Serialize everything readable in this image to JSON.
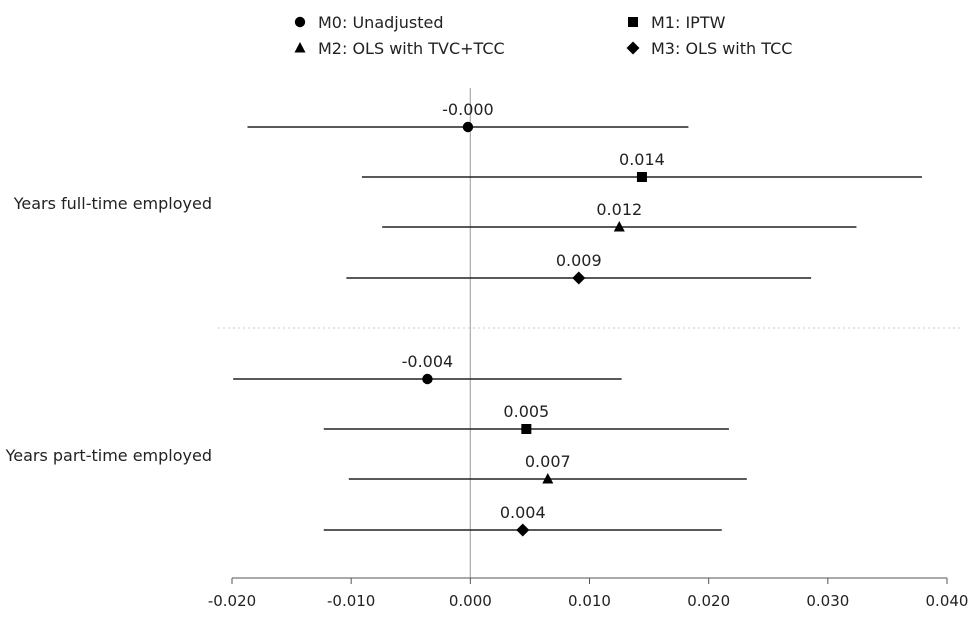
{
  "chart_data": {
    "type": "forest",
    "xlim": [
      -0.02,
      0.04
    ],
    "xticks": [
      -0.02,
      -0.01,
      0.0,
      0.01,
      0.02,
      0.03,
      0.04
    ],
    "xtick_labels": [
      "-0.020",
      "-0.010",
      "0.000",
      "0.010",
      "0.020",
      "0.030",
      "0.040"
    ],
    "reference_line": 0.0,
    "legend_position": "top",
    "series": [
      {
        "name": "M0: Unadjusted",
        "marker": "circle"
      },
      {
        "name": "M1: IPTW",
        "marker": "square"
      },
      {
        "name": "M2: OLS with TVC+TCC",
        "marker": "triangle"
      },
      {
        "name": "M3: OLS with TCC",
        "marker": "diamond"
      }
    ],
    "groups": [
      {
        "label": "Years full-time employed",
        "estimates": [
          {
            "model": "M0: Unadjusted",
            "value": -0.0002,
            "label": "-0.000",
            "ci": [
              -0.0187,
              0.0183
            ]
          },
          {
            "model": "M1: IPTW",
            "value": 0.0144,
            "label": "0.014",
            "ci": [
              -0.0091,
              0.0379
            ]
          },
          {
            "model": "M2: OLS with TVC+TCC",
            "value": 0.0125,
            "label": "0.012",
            "ci": [
              -0.0074,
              0.0324
            ]
          },
          {
            "model": "M3: OLS with TCC",
            "value": 0.0091,
            "label": "0.009",
            "ci": [
              -0.0104,
              0.0286
            ]
          }
        ]
      },
      {
        "label": "Years part-time employed",
        "estimates": [
          {
            "model": "M0: Unadjusted",
            "value": -0.0036,
            "label": "-0.004",
            "ci": [
              -0.0199,
              0.0127
            ]
          },
          {
            "model": "M1: IPTW",
            "value": 0.0047,
            "label": "0.005",
            "ci": [
              -0.0123,
              0.0217
            ]
          },
          {
            "model": "M2: OLS with TVC+TCC",
            "value": 0.0065,
            "label": "0.007",
            "ci": [
              -0.0102,
              0.0232
            ]
          },
          {
            "model": "M3: OLS with TCC",
            "value": 0.0044,
            "label": "0.004",
            "ci": [
              -0.0123,
              0.0211
            ]
          }
        ]
      }
    ]
  },
  "colors": {
    "line": "#222222",
    "marker": "#000000",
    "zero_line": "#aaaaaa",
    "separator": "#c8c8c8",
    "axis": "#555555"
  }
}
